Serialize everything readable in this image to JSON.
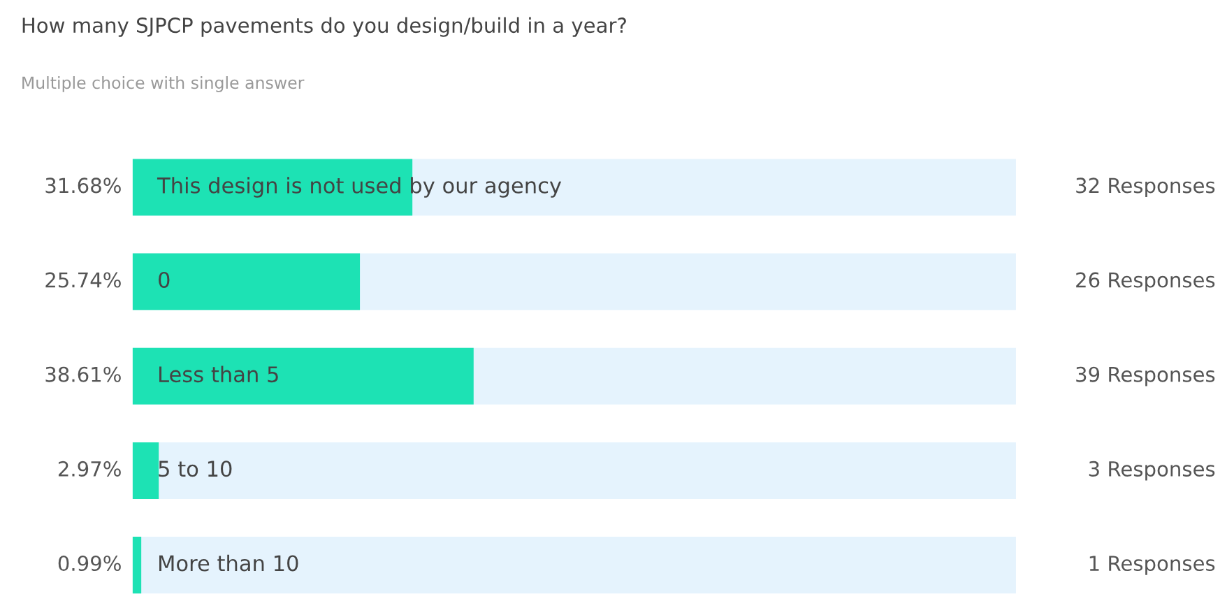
{
  "chart_data": {
    "type": "bar",
    "orientation": "horizontal",
    "title": "How many SJPCP pavements do you design/build in a year?",
    "subtitle": "Multiple choice with single answer",
    "categories": [
      "This design is not used by our agency",
      "0",
      "Less than 5",
      "5 to 10",
      "More than 10"
    ],
    "values": [
      31.68,
      25.74,
      38.61,
      2.97,
      0.99
    ],
    "value_labels": [
      "31.68%",
      "25.74%",
      "38.61%",
      "2.97%",
      "0.99%"
    ],
    "color": "#1de2b4",
    "xlim": [
      0,
      100
    ],
    "annotations": [
      "32 Responses",
      "26 Responses",
      "39 Responses",
      "3 Responses",
      "1 Responses"
    ]
  }
}
